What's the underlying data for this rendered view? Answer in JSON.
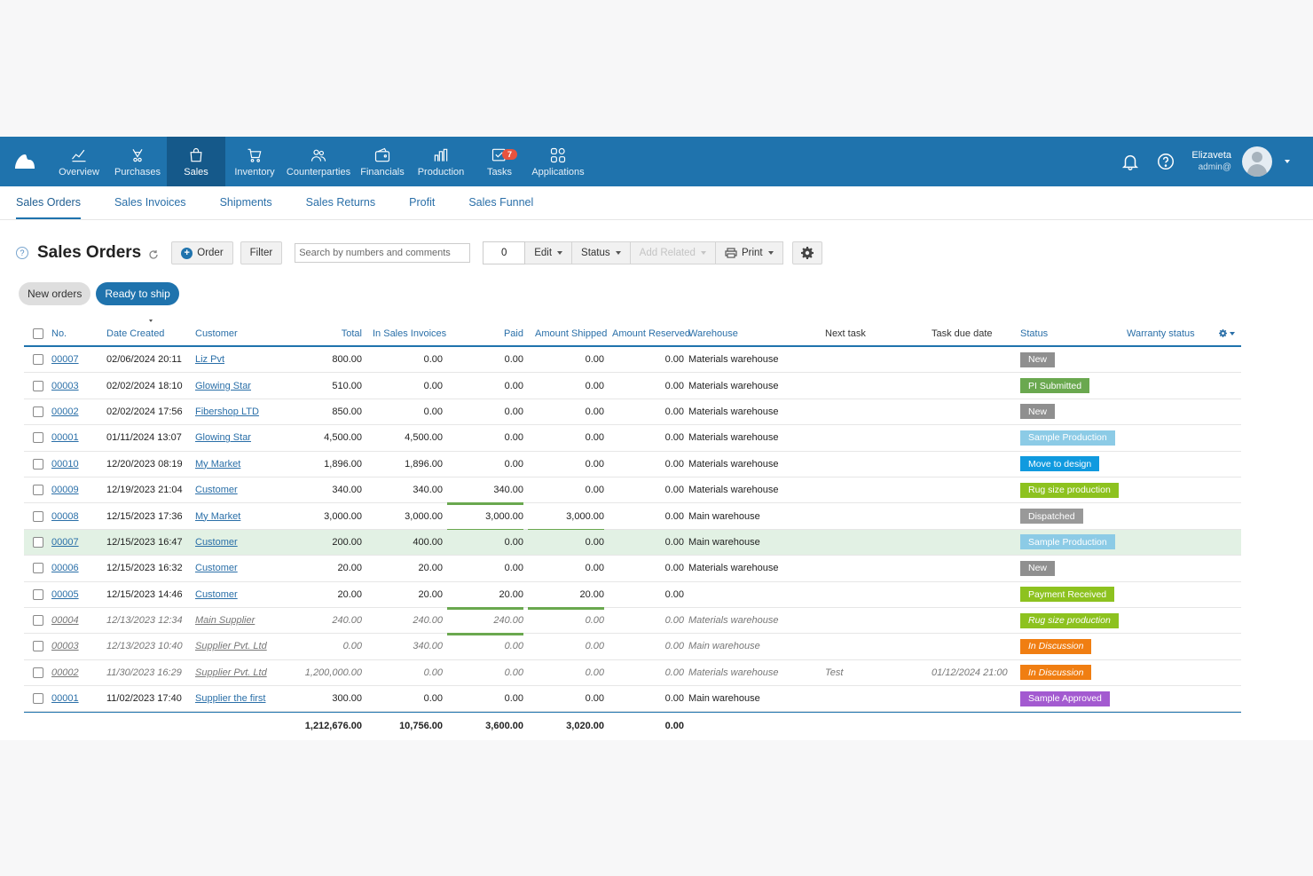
{
  "nav": {
    "items": [
      {
        "label": "Overview",
        "icon": "chart-line-icon"
      },
      {
        "label": "Purchases",
        "icon": "purchases-icon"
      },
      {
        "label": "Sales",
        "icon": "shopping-bag-icon"
      },
      {
        "label": "Inventory",
        "icon": "cart-icon"
      },
      {
        "label": "Counterparties",
        "icon": "people-icon"
      },
      {
        "label": "Financials",
        "icon": "wallet-icon"
      },
      {
        "label": "Production",
        "icon": "bar-chart-icon"
      },
      {
        "label": "Tasks",
        "icon": "tasks-icon"
      },
      {
        "label": "Applications",
        "icon": "apps-grid-icon"
      }
    ],
    "tasks_badge": "7",
    "user_name": "Elizaveta",
    "user_role": "admin@"
  },
  "subnav": [
    "Sales Orders",
    "Sales Invoices",
    "Shipments",
    "Sales Returns",
    "Profit",
    "Sales Funnel"
  ],
  "toolbar": {
    "help": "?",
    "title": "Sales Orders",
    "order_label": "Order",
    "filter_label": "Filter",
    "search_placeholder": "Search by numbers and comments",
    "selected_count": "0",
    "edit_label": "Edit",
    "status_label": "Status",
    "add_related_label": "Add Related",
    "print_label": "Print"
  },
  "quick_filters": [
    "New orders",
    "Ready to ship"
  ],
  "table": {
    "headers": {
      "no": "No.",
      "date": "Date Created",
      "customer": "Customer",
      "total": "Total",
      "in_invoices": "In Sales Invoices",
      "paid": "Paid",
      "shipped": "Amount Shipped",
      "reserved": "Amount Reserved",
      "warehouse": "Warehouse",
      "next_task": "Next task",
      "task_due": "Task due date",
      "status": "Status",
      "warranty": "Warranty status"
    },
    "rows": [
      {
        "no": "00007",
        "date": "02/06/2024 20:11",
        "customer": "Liz Pvt",
        "total": "800.00",
        "inv": "0.00",
        "paid": "0.00",
        "shipped": "0.00",
        "reserved": "0.00",
        "warehouse": "Materials warehouse",
        "task": "",
        "due": "",
        "status": "New",
        "color": "#8f8f8f"
      },
      {
        "no": "00003",
        "date": "02/02/2024 18:10",
        "customer": "Glowing Star",
        "total": "510.00",
        "inv": "0.00",
        "paid": "0.00",
        "shipped": "0.00",
        "reserved": "0.00",
        "warehouse": "Materials warehouse",
        "task": "",
        "due": "",
        "status": "PI Submitted",
        "color": "#6aa84f"
      },
      {
        "no": "00002",
        "date": "02/02/2024 17:56",
        "customer": "Fibershop LTD",
        "total": "850.00",
        "inv": "0.00",
        "paid": "0.00",
        "shipped": "0.00",
        "reserved": "0.00",
        "warehouse": "Materials warehouse",
        "task": "",
        "due": "",
        "status": "New",
        "color": "#8f8f8f"
      },
      {
        "no": "00001",
        "date": "01/11/2024 13:07",
        "customer": "Glowing Star",
        "total": "4,500.00",
        "inv": "4,500.00",
        "paid": "0.00",
        "shipped": "0.00",
        "reserved": "0.00",
        "warehouse": "Materials warehouse",
        "task": "",
        "due": "",
        "status": "Sample Production",
        "color": "#8ccbe6"
      },
      {
        "no": "00010",
        "date": "12/20/2023 08:19",
        "customer": "My Market",
        "total": "1,896.00",
        "inv": "1,896.00",
        "paid": "0.00",
        "shipped": "0.00",
        "reserved": "0.00",
        "warehouse": "Materials warehouse",
        "task": "",
        "due": "",
        "status": "Move to design",
        "color": "#109adf"
      },
      {
        "no": "00009",
        "date": "12/19/2023 21:04",
        "customer": "Customer",
        "total": "340.00",
        "inv": "340.00",
        "paid": "340.00",
        "shipped": "0.00",
        "reserved": "0.00",
        "warehouse": "Materials warehouse",
        "task": "",
        "due": "",
        "status": "Rug size production",
        "color": "#8dc21f",
        "paid_fill": 1,
        "shipped_fill": 0
      },
      {
        "no": "00008",
        "date": "12/15/2023 17:36",
        "customer": "My Market",
        "total": "3,000.00",
        "inv": "3,000.00",
        "paid": "3,000.00",
        "shipped": "3,000.00",
        "reserved": "0.00",
        "warehouse": "Main warehouse",
        "task": "",
        "due": "",
        "status": "Dispatched",
        "color": "#999999",
        "paid_fill": 1,
        "shipped_fill": 1
      },
      {
        "no": "00007",
        "date": "12/15/2023 16:47",
        "customer": "Customer",
        "total": "200.00",
        "inv": "400.00",
        "paid": "0.00",
        "shipped": "0.00",
        "reserved": "0.00",
        "warehouse": "Main warehouse",
        "task": "",
        "due": "",
        "status": "Sample Production",
        "color": "#8ccbe6",
        "highlight": true
      },
      {
        "no": "00006",
        "date": "12/15/2023 16:32",
        "customer": "Customer",
        "total": "20.00",
        "inv": "20.00",
        "paid": "0.00",
        "shipped": "0.00",
        "reserved": "0.00",
        "warehouse": "Materials warehouse",
        "task": "",
        "due": "",
        "status": "New",
        "color": "#8f8f8f"
      },
      {
        "no": "00005",
        "date": "12/15/2023 14:46",
        "customer": "Customer",
        "total": "20.00",
        "inv": "20.00",
        "paid": "20.00",
        "shipped": "20.00",
        "reserved": "0.00",
        "warehouse": "",
        "task": "",
        "due": "",
        "status": "Payment Received",
        "color": "#8dc21f",
        "paid_fill": 1,
        "shipped_fill": 1
      },
      {
        "no": "00004",
        "date": "12/13/2023 12:34",
        "customer": "Main Supplier",
        "total": "240.00",
        "inv": "240.00",
        "paid": "240.00",
        "shipped": "0.00",
        "reserved": "0.00",
        "warehouse": "Materials warehouse",
        "task": "",
        "due": "",
        "status": "Rug size production",
        "color": "#8dc21f",
        "italic": true,
        "paid_fill": 1
      },
      {
        "no": "00003",
        "date": "12/13/2023 10:40",
        "customer": "Supplier Pvt. Ltd",
        "total": "0.00",
        "inv": "340.00",
        "paid": "0.00",
        "shipped": "0.00",
        "reserved": "0.00",
        "warehouse": "Main warehouse",
        "task": "",
        "due": "",
        "status": "In Discussion",
        "color": "#f07e12",
        "italic": true
      },
      {
        "no": "00002",
        "date": "11/30/2023 16:29",
        "customer": "Supplier Pvt. Ltd",
        "total": "1,200,000.00",
        "inv": "0.00",
        "paid": "0.00",
        "shipped": "0.00",
        "reserved": "0.00",
        "warehouse": "Materials warehouse",
        "task": "Test",
        "due": "01/12/2024 21:00",
        "status": "In Discussion",
        "color": "#f07e12",
        "italic": true
      },
      {
        "no": "00001",
        "date": "11/02/2023 17:40",
        "customer": "Supplier the first",
        "total": "300.00",
        "inv": "0.00",
        "paid": "0.00",
        "shipped": "0.00",
        "reserved": "0.00",
        "warehouse": "Main warehouse",
        "task": "",
        "due": "",
        "status": "Sample Approved",
        "color": "#a35ad0"
      }
    ],
    "totals": {
      "total": "1,212,676.00",
      "inv": "10,756.00",
      "paid": "3,600.00",
      "shipped": "3,020.00",
      "reserved": "0.00"
    }
  }
}
